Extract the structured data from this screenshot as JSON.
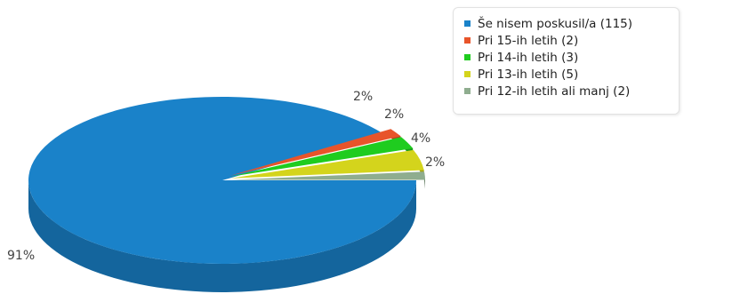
{
  "chart_data": {
    "type": "pie",
    "title": "",
    "legend_position": "top-right",
    "slices": [
      {
        "label": "Še nisem poskusil/a",
        "count": 115,
        "percent_label": "91%",
        "legend_text": "Še nisem poskusil/a (115)",
        "color": "#1a82c9"
      },
      {
        "label": "Pri 15-ih letih",
        "count": 2,
        "percent_label": "2%",
        "legend_text": "Pri 15-ih letih (2)",
        "color": "#e8542a"
      },
      {
        "label": "Pri 14-ih letih",
        "count": 3,
        "percent_label": "2%",
        "legend_text": "Pri 14-ih letih (3)",
        "color": "#1fcc1f"
      },
      {
        "label": "Pri 13-ih letih",
        "count": 5,
        "percent_label": "4%",
        "legend_text": "Pri 13-ih letih (5)",
        "color": "#d4d41c"
      },
      {
        "label": "Pri 12-ih letih ali manj",
        "count": 2,
        "percent_label": "2%",
        "legend_text": "Pri 12-ih letih ali manj (2)",
        "color": "#8fad8f"
      }
    ]
  }
}
